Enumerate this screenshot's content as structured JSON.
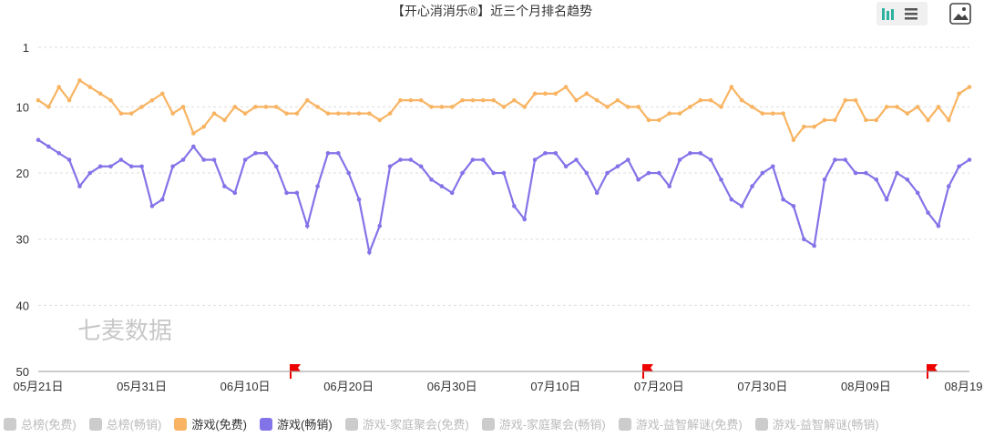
{
  "chart_data": {
    "type": "line",
    "title": "【开心消消乐®】近三个月排名趋势",
    "watermark": "七麦数据",
    "categories": [
      "05月21日",
      null,
      null,
      null,
      null,
      null,
      null,
      null,
      null,
      null,
      "05月31日",
      null,
      null,
      null,
      null,
      null,
      null,
      null,
      null,
      null,
      "06月10日",
      null,
      null,
      null,
      null,
      null,
      null,
      null,
      null,
      null,
      "06月20日",
      null,
      null,
      null,
      null,
      null,
      null,
      null,
      null,
      null,
      "06月30日",
      null,
      null,
      null,
      null,
      null,
      null,
      null,
      null,
      null,
      "07月10日",
      null,
      null,
      null,
      null,
      null,
      null,
      null,
      null,
      null,
      "07月20日",
      null,
      null,
      null,
      null,
      null,
      null,
      null,
      null,
      null,
      "07月30日",
      null,
      null,
      null,
      null,
      null,
      null,
      null,
      null,
      null,
      "08月09日",
      null,
      null,
      null,
      null,
      null,
      null,
      null,
      null,
      null,
      "08月19日"
    ],
    "ylim": [
      1,
      50
    ],
    "yticks": [
      1,
      10,
      20,
      30,
      40,
      50
    ],
    "y_inverted": true,
    "grid": true,
    "series": [
      {
        "name": "总榜(免费)",
        "color": "#cccccc",
        "visible": false
      },
      {
        "name": "总榜(畅销)",
        "color": "#cccccc",
        "visible": false
      },
      {
        "name": "游戏(免费)",
        "color": "#f8b462",
        "visible": true,
        "values": [
          9,
          10,
          7,
          9,
          6,
          7,
          8,
          9,
          11,
          11,
          10,
          9,
          8,
          11,
          10,
          14,
          13,
          11,
          12,
          10,
          11,
          10,
          10,
          10,
          11,
          11,
          9,
          10,
          11,
          11,
          11,
          11,
          11,
          12,
          11,
          9,
          9,
          9,
          10,
          10,
          10,
          9,
          9,
          9,
          9,
          10,
          9,
          10,
          8,
          8,
          8,
          7,
          9,
          8,
          9,
          10,
          9,
          10,
          10,
          12,
          12,
          11,
          11,
          10,
          9,
          9,
          10,
          7,
          9,
          10,
          11,
          11,
          11,
          15,
          13,
          13,
          12,
          12,
          9,
          9,
          12,
          12,
          10,
          10,
          11,
          10,
          12,
          10,
          12,
          8,
          7
        ]
      },
      {
        "name": "游戏(畅销)",
        "color": "#8373e8",
        "visible": true,
        "values": [
          15,
          16,
          17,
          18,
          22,
          20,
          19,
          19,
          18,
          19,
          19,
          25,
          24,
          19,
          18,
          16,
          18,
          18,
          22,
          23,
          18,
          17,
          17,
          19,
          23,
          23,
          28,
          22,
          17,
          17,
          20,
          24,
          32,
          28,
          19,
          18,
          18,
          19,
          21,
          22,
          23,
          20,
          18,
          18,
          20,
          20,
          25,
          27,
          18,
          17,
          17,
          19,
          18,
          20,
          23,
          20,
          19,
          18,
          21,
          20,
          20,
          22,
          18,
          17,
          17,
          18,
          21,
          24,
          25,
          22,
          20,
          19,
          24,
          25,
          30,
          31,
          21,
          18,
          18,
          20,
          20,
          21,
          24,
          20,
          21,
          23,
          26,
          28,
          22,
          19,
          18
        ]
      },
      {
        "name": "游戏-家庭聚会(免费)",
        "color": "#cccccc",
        "visible": false
      },
      {
        "name": "游戏-家庭聚会(畅销)",
        "color": "#cccccc",
        "visible": false
      },
      {
        "name": "游戏-益智解谜(免费)",
        "color": "#cccccc",
        "visible": false
      },
      {
        "name": "游戏-益智解谜(畅销)",
        "color": "#cccccc",
        "visible": false
      }
    ]
  }
}
